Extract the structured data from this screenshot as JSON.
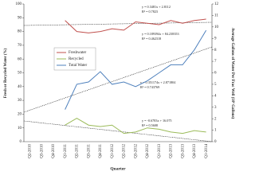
{
  "chart_data": {
    "type": "line",
    "x_label": "Quarter",
    "y_label": "Fresh or Recycled Water (%)",
    "y2_label": "Average Gallons of Water Per Frac Well (10⁶ Gallons)",
    "categories": [
      "Q2-2010",
      "Q3-2010",
      "Q4-2010",
      "Q1-2011",
      "Q2-2011",
      "Q3-2011",
      "Q4-2011",
      "Q1-2012",
      "Q2-2012",
      "Q3-2012",
      "Q4-2012",
      "Q1-2013",
      "Q2-2013",
      "Q3-2013",
      "Q4-2013",
      "Q1-2014"
    ],
    "ylim": [
      0,
      100
    ],
    "yticks": [
      0,
      10,
      20,
      30,
      40,
      50,
      60,
      70,
      80,
      90,
      100
    ],
    "y2lim": [
      0,
      12
    ],
    "y2ticks": [
      0,
      1,
      2,
      3,
      4,
      5,
      6,
      7,
      8,
      9,
      10,
      11,
      12
    ],
    "series": [
      {
        "name": "Freshwater",
        "color": "#c0504d",
        "values": [
          null,
          null,
          null,
          88,
          80,
          79,
          80,
          82,
          81,
          87,
          86,
          85,
          88,
          86,
          88,
          89
        ]
      },
      {
        "name": "Recycled",
        "color": "#9bbb59",
        "values": [
          null,
          null,
          null,
          12,
          17,
          12,
          11,
          12,
          6,
          7,
          10,
          9,
          7,
          6,
          8,
          7
        ]
      },
      {
        "name": "Total Water",
        "color": "#4f81bd",
        "axis": "y2",
        "values": [
          null,
          null,
          null,
          2.8,
          5.0,
          5.2,
          6.1,
          5.0,
          5.2,
          4.8,
          5.3,
          6.0,
          6.7,
          6.7,
          8.0,
          9.7
        ]
      }
    ],
    "annotations": [
      "y = 0.3481x + 2.8112",
      "R² = 0.7823",
      "y = 0.189394x + 84.238353",
      "R² = 0.462318",
      "y = 0.351174x + 2.871804",
      "R² = 0.743769",
      "y = -0.6783x + 16.075",
      "R² = 0.5608"
    ]
  }
}
